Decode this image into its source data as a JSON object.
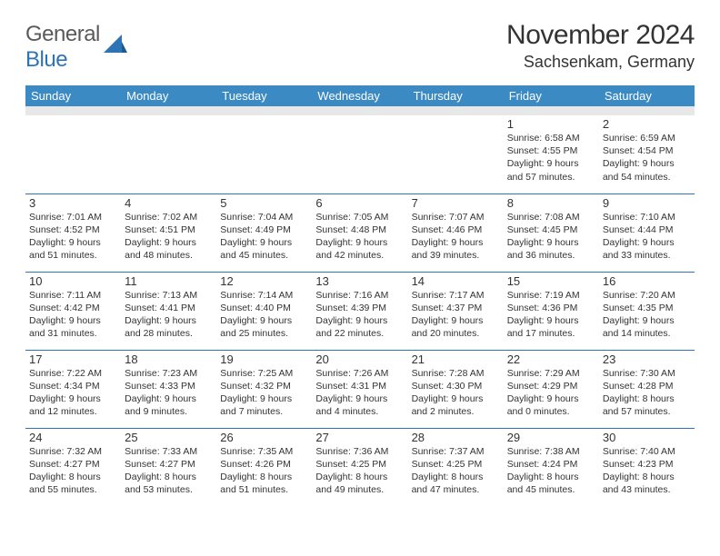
{
  "logo": {
    "word1": "General",
    "word2": "Blue"
  },
  "title": "November 2024",
  "location": "Sachsenkam, Germany",
  "colors": {
    "header_bg": "#3b8ac4",
    "header_text": "#ffffff",
    "row_divider": "#2e74b5",
    "spacer_bg": "#e8e8e8",
    "text": "#333333",
    "logo_gray": "#5a5a5a",
    "logo_blue": "#2e74b5",
    "page_bg": "#ffffff"
  },
  "day_headers": [
    "Sunday",
    "Monday",
    "Tuesday",
    "Wednesday",
    "Thursday",
    "Friday",
    "Saturday"
  ],
  "weeks": [
    [
      null,
      null,
      null,
      null,
      null,
      {
        "n": "1",
        "sr": "Sunrise: 6:58 AM",
        "ss": "Sunset: 4:55 PM",
        "d1": "Daylight: 9 hours",
        "d2": "and 57 minutes."
      },
      {
        "n": "2",
        "sr": "Sunrise: 6:59 AM",
        "ss": "Sunset: 4:54 PM",
        "d1": "Daylight: 9 hours",
        "d2": "and 54 minutes."
      }
    ],
    [
      {
        "n": "3",
        "sr": "Sunrise: 7:01 AM",
        "ss": "Sunset: 4:52 PM",
        "d1": "Daylight: 9 hours",
        "d2": "and 51 minutes."
      },
      {
        "n": "4",
        "sr": "Sunrise: 7:02 AM",
        "ss": "Sunset: 4:51 PM",
        "d1": "Daylight: 9 hours",
        "d2": "and 48 minutes."
      },
      {
        "n": "5",
        "sr": "Sunrise: 7:04 AM",
        "ss": "Sunset: 4:49 PM",
        "d1": "Daylight: 9 hours",
        "d2": "and 45 minutes."
      },
      {
        "n": "6",
        "sr": "Sunrise: 7:05 AM",
        "ss": "Sunset: 4:48 PM",
        "d1": "Daylight: 9 hours",
        "d2": "and 42 minutes."
      },
      {
        "n": "7",
        "sr": "Sunrise: 7:07 AM",
        "ss": "Sunset: 4:46 PM",
        "d1": "Daylight: 9 hours",
        "d2": "and 39 minutes."
      },
      {
        "n": "8",
        "sr": "Sunrise: 7:08 AM",
        "ss": "Sunset: 4:45 PM",
        "d1": "Daylight: 9 hours",
        "d2": "and 36 minutes."
      },
      {
        "n": "9",
        "sr": "Sunrise: 7:10 AM",
        "ss": "Sunset: 4:44 PM",
        "d1": "Daylight: 9 hours",
        "d2": "and 33 minutes."
      }
    ],
    [
      {
        "n": "10",
        "sr": "Sunrise: 7:11 AM",
        "ss": "Sunset: 4:42 PM",
        "d1": "Daylight: 9 hours",
        "d2": "and 31 minutes."
      },
      {
        "n": "11",
        "sr": "Sunrise: 7:13 AM",
        "ss": "Sunset: 4:41 PM",
        "d1": "Daylight: 9 hours",
        "d2": "and 28 minutes."
      },
      {
        "n": "12",
        "sr": "Sunrise: 7:14 AM",
        "ss": "Sunset: 4:40 PM",
        "d1": "Daylight: 9 hours",
        "d2": "and 25 minutes."
      },
      {
        "n": "13",
        "sr": "Sunrise: 7:16 AM",
        "ss": "Sunset: 4:39 PM",
        "d1": "Daylight: 9 hours",
        "d2": "and 22 minutes."
      },
      {
        "n": "14",
        "sr": "Sunrise: 7:17 AM",
        "ss": "Sunset: 4:37 PM",
        "d1": "Daylight: 9 hours",
        "d2": "and 20 minutes."
      },
      {
        "n": "15",
        "sr": "Sunrise: 7:19 AM",
        "ss": "Sunset: 4:36 PM",
        "d1": "Daylight: 9 hours",
        "d2": "and 17 minutes."
      },
      {
        "n": "16",
        "sr": "Sunrise: 7:20 AM",
        "ss": "Sunset: 4:35 PM",
        "d1": "Daylight: 9 hours",
        "d2": "and 14 minutes."
      }
    ],
    [
      {
        "n": "17",
        "sr": "Sunrise: 7:22 AM",
        "ss": "Sunset: 4:34 PM",
        "d1": "Daylight: 9 hours",
        "d2": "and 12 minutes."
      },
      {
        "n": "18",
        "sr": "Sunrise: 7:23 AM",
        "ss": "Sunset: 4:33 PM",
        "d1": "Daylight: 9 hours",
        "d2": "and 9 minutes."
      },
      {
        "n": "19",
        "sr": "Sunrise: 7:25 AM",
        "ss": "Sunset: 4:32 PM",
        "d1": "Daylight: 9 hours",
        "d2": "and 7 minutes."
      },
      {
        "n": "20",
        "sr": "Sunrise: 7:26 AM",
        "ss": "Sunset: 4:31 PM",
        "d1": "Daylight: 9 hours",
        "d2": "and 4 minutes."
      },
      {
        "n": "21",
        "sr": "Sunrise: 7:28 AM",
        "ss": "Sunset: 4:30 PM",
        "d1": "Daylight: 9 hours",
        "d2": "and 2 minutes."
      },
      {
        "n": "22",
        "sr": "Sunrise: 7:29 AM",
        "ss": "Sunset: 4:29 PM",
        "d1": "Daylight: 9 hours",
        "d2": "and 0 minutes."
      },
      {
        "n": "23",
        "sr": "Sunrise: 7:30 AM",
        "ss": "Sunset: 4:28 PM",
        "d1": "Daylight: 8 hours",
        "d2": "and 57 minutes."
      }
    ],
    [
      {
        "n": "24",
        "sr": "Sunrise: 7:32 AM",
        "ss": "Sunset: 4:27 PM",
        "d1": "Daylight: 8 hours",
        "d2": "and 55 minutes."
      },
      {
        "n": "25",
        "sr": "Sunrise: 7:33 AM",
        "ss": "Sunset: 4:27 PM",
        "d1": "Daylight: 8 hours",
        "d2": "and 53 minutes."
      },
      {
        "n": "26",
        "sr": "Sunrise: 7:35 AM",
        "ss": "Sunset: 4:26 PM",
        "d1": "Daylight: 8 hours",
        "d2": "and 51 minutes."
      },
      {
        "n": "27",
        "sr": "Sunrise: 7:36 AM",
        "ss": "Sunset: 4:25 PM",
        "d1": "Daylight: 8 hours",
        "d2": "and 49 minutes."
      },
      {
        "n": "28",
        "sr": "Sunrise: 7:37 AM",
        "ss": "Sunset: 4:25 PM",
        "d1": "Daylight: 8 hours",
        "d2": "and 47 minutes."
      },
      {
        "n": "29",
        "sr": "Sunrise: 7:38 AM",
        "ss": "Sunset: 4:24 PM",
        "d1": "Daylight: 8 hours",
        "d2": "and 45 minutes."
      },
      {
        "n": "30",
        "sr": "Sunrise: 7:40 AM",
        "ss": "Sunset: 4:23 PM",
        "d1": "Daylight: 8 hours",
        "d2": "and 43 minutes."
      }
    ]
  ]
}
